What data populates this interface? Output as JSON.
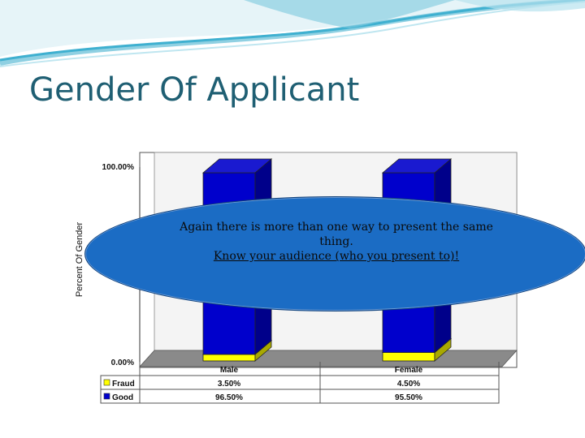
{
  "slide": {
    "title": "Gender Of Applicant"
  },
  "callout": {
    "line1": "Again there is more than one way to present the same thing.",
    "line2": "Know your audience (who you present to)!"
  },
  "colors": {
    "fraud": "#ffff00",
    "good": "#0000cc",
    "title": "#1f5f73",
    "callout": "#1b6cc4"
  },
  "chart_data": {
    "type": "bar",
    "stacked": true,
    "style": "3d",
    "categories": [
      "Male",
      "Female"
    ],
    "series": [
      {
        "name": "Fraud",
        "values": [
          3.5,
          4.5
        ],
        "labels": [
          "3.50%",
          "4.50%"
        ]
      },
      {
        "name": "Good",
        "values": [
          96.5,
          95.5
        ],
        "labels": [
          "96.50%",
          "95.50%"
        ]
      }
    ],
    "ylabel": "Percent Of Gender",
    "ylim": [
      0,
      100
    ],
    "yticks": [
      "0.00%",
      "100.00%"
    ],
    "legend": "data-table-below"
  }
}
